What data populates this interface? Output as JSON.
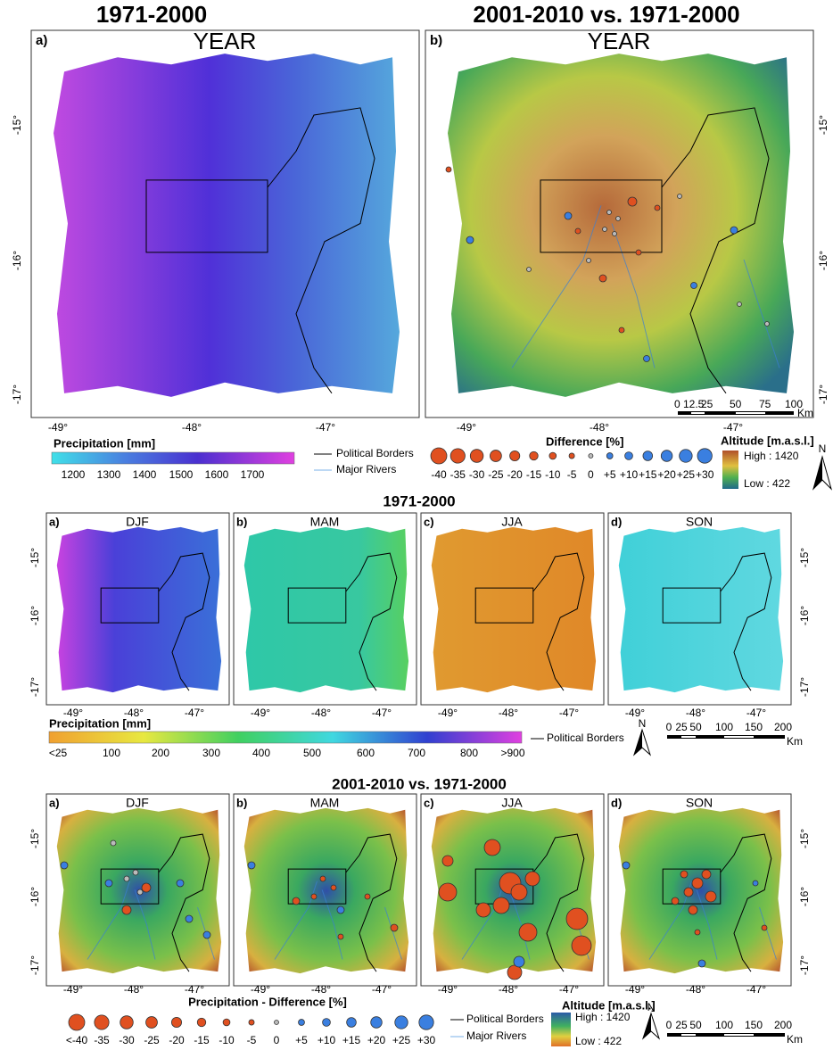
{
  "top": {
    "panels": [
      {
        "title": "1971-2000",
        "label": "a)",
        "period": "YEAR"
      },
      {
        "title": "2001-2010 vs. 1971-2000",
        "label": "b)",
        "period": "YEAR"
      }
    ],
    "lat_ticks": [
      "-15°",
      "-16°",
      "-17°"
    ],
    "lon_ticks": [
      "-49°",
      "-48°",
      "-47°"
    ],
    "scale_bar": {
      "labels": [
        "0",
        "12.5",
        "25",
        "50",
        "75",
        "100"
      ],
      "unit": "Km"
    },
    "precip_legend": {
      "title": "Precipitation [mm]",
      "labels": [
        "1200",
        "1300",
        "1400",
        "1500",
        "1600",
        "1700"
      ]
    },
    "lines_legend": [
      "Political Borders",
      "Major Rivers"
    ],
    "difference_legend": {
      "title": "Difference [%]",
      "labels": [
        "-40",
        "-35",
        "-30",
        "-25",
        "-20",
        "-15",
        "-10",
        "-5",
        "0",
        "+5",
        "+10",
        "+15",
        "+20",
        "+25",
        "+30"
      ]
    },
    "altitude_legend": {
      "title": "Altitude [m.a.s.l.]",
      "high": "High : 1420",
      "low": "Low : 422"
    },
    "north": "N"
  },
  "middle": {
    "title": "1971-2000",
    "panels": [
      {
        "label": "a)",
        "season": "DJF"
      },
      {
        "label": "b)",
        "season": "MAM"
      },
      {
        "label": "c)",
        "season": "JJA"
      },
      {
        "label": "d)",
        "season": "SON"
      }
    ],
    "precip_legend": {
      "title": "Precipitation [mm]",
      "labels": [
        "<25",
        "100",
        "200",
        "300",
        "400",
        "500",
        "600",
        "700",
        "800",
        ">900"
      ]
    },
    "border_legend": "Political Borders",
    "north": "N",
    "scale_bar": {
      "labels": [
        "0",
        "25",
        "50",
        "100",
        "150",
        "200"
      ],
      "unit": "Km"
    }
  },
  "bottom": {
    "title": "2001-2010 vs. 1971-2000",
    "panels": [
      {
        "label": "a)",
        "season": "DJF"
      },
      {
        "label": "b)",
        "season": "MAM"
      },
      {
        "label": "c)",
        "season": "JJA"
      },
      {
        "label": "d)",
        "season": "SON"
      }
    ],
    "difference_legend": {
      "title": "Precipitation - Difference [%]",
      "labels": [
        "<-40",
        "-35",
        "-30",
        "-25",
        "-20",
        "-15",
        "-10",
        "-5",
        "0",
        "+5",
        "+10",
        "+15",
        "+20",
        "+25",
        "+30"
      ]
    },
    "lines_legend": [
      "Political Borders",
      "Major Rivers"
    ],
    "altitude_legend": {
      "title": "Altitude [m.a.s.l.]",
      "high": "High : 1420",
      "low": "Low : 422"
    },
    "north": "N",
    "scale_bar": {
      "labels": [
        "0",
        "25",
        "50",
        "100",
        "150",
        "200"
      ],
      "unit": "Km"
    }
  }
}
